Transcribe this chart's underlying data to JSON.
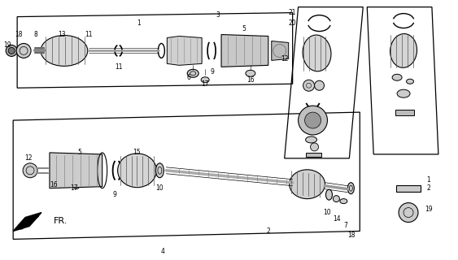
{
  "bg_color": "#ffffff",
  "line_color": "#000000",
  "fig_width": 5.63,
  "fig_height": 3.2,
  "dpi": 100
}
